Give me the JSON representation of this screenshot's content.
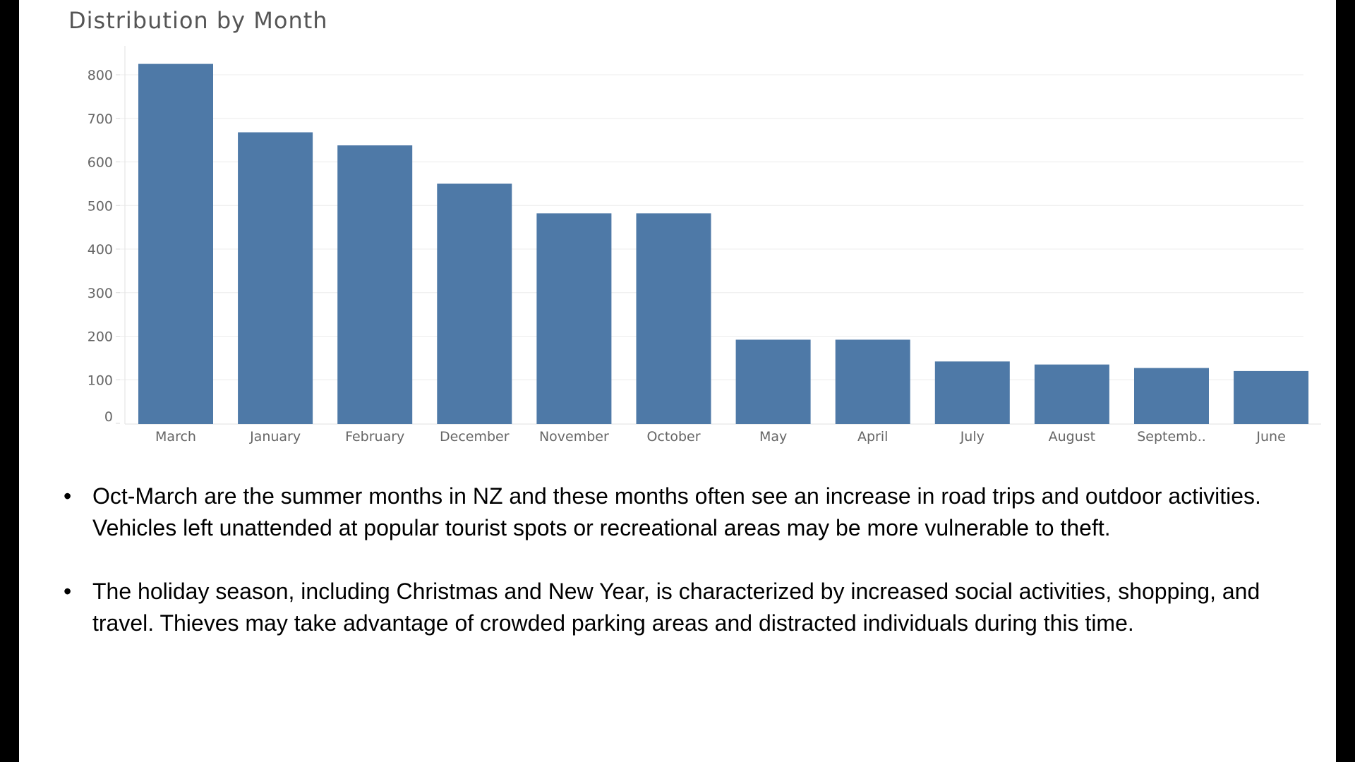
{
  "chart_data": {
    "type": "bar",
    "title": "Distribution by Month",
    "categories": [
      "March",
      "January",
      "February",
      "December",
      "November",
      "October",
      "May",
      "April",
      "July",
      "August",
      "Septemb..",
      "June"
    ],
    "values": [
      825,
      668,
      638,
      550,
      482,
      482,
      192,
      192,
      142,
      135,
      127,
      120
    ],
    "ylim": [
      0,
      850
    ],
    "yticks": [
      0,
      100,
      200,
      300,
      400,
      500,
      600,
      700,
      800
    ],
    "xlabel": "",
    "ylabel": "",
    "grid": true,
    "bar_color": "#4e79a7",
    "grid_color": "#ececec",
    "tick_color": "#666666"
  },
  "bullets": [
    {
      "text": "Oct-March are the summer months in NZ and these months often see an increase in road trips and outdoor activities. Vehicles left unattended at popular tourist spots or recreational areas may be more vulnerable to theft."
    },
    {
      "text": "The holiday season, including Christmas and New Year, is characterized by increased social activities, shopping, and travel. Thieves may take advantage of crowded parking areas and distracted individuals during this time."
    }
  ],
  "bullet_symbol": "•"
}
